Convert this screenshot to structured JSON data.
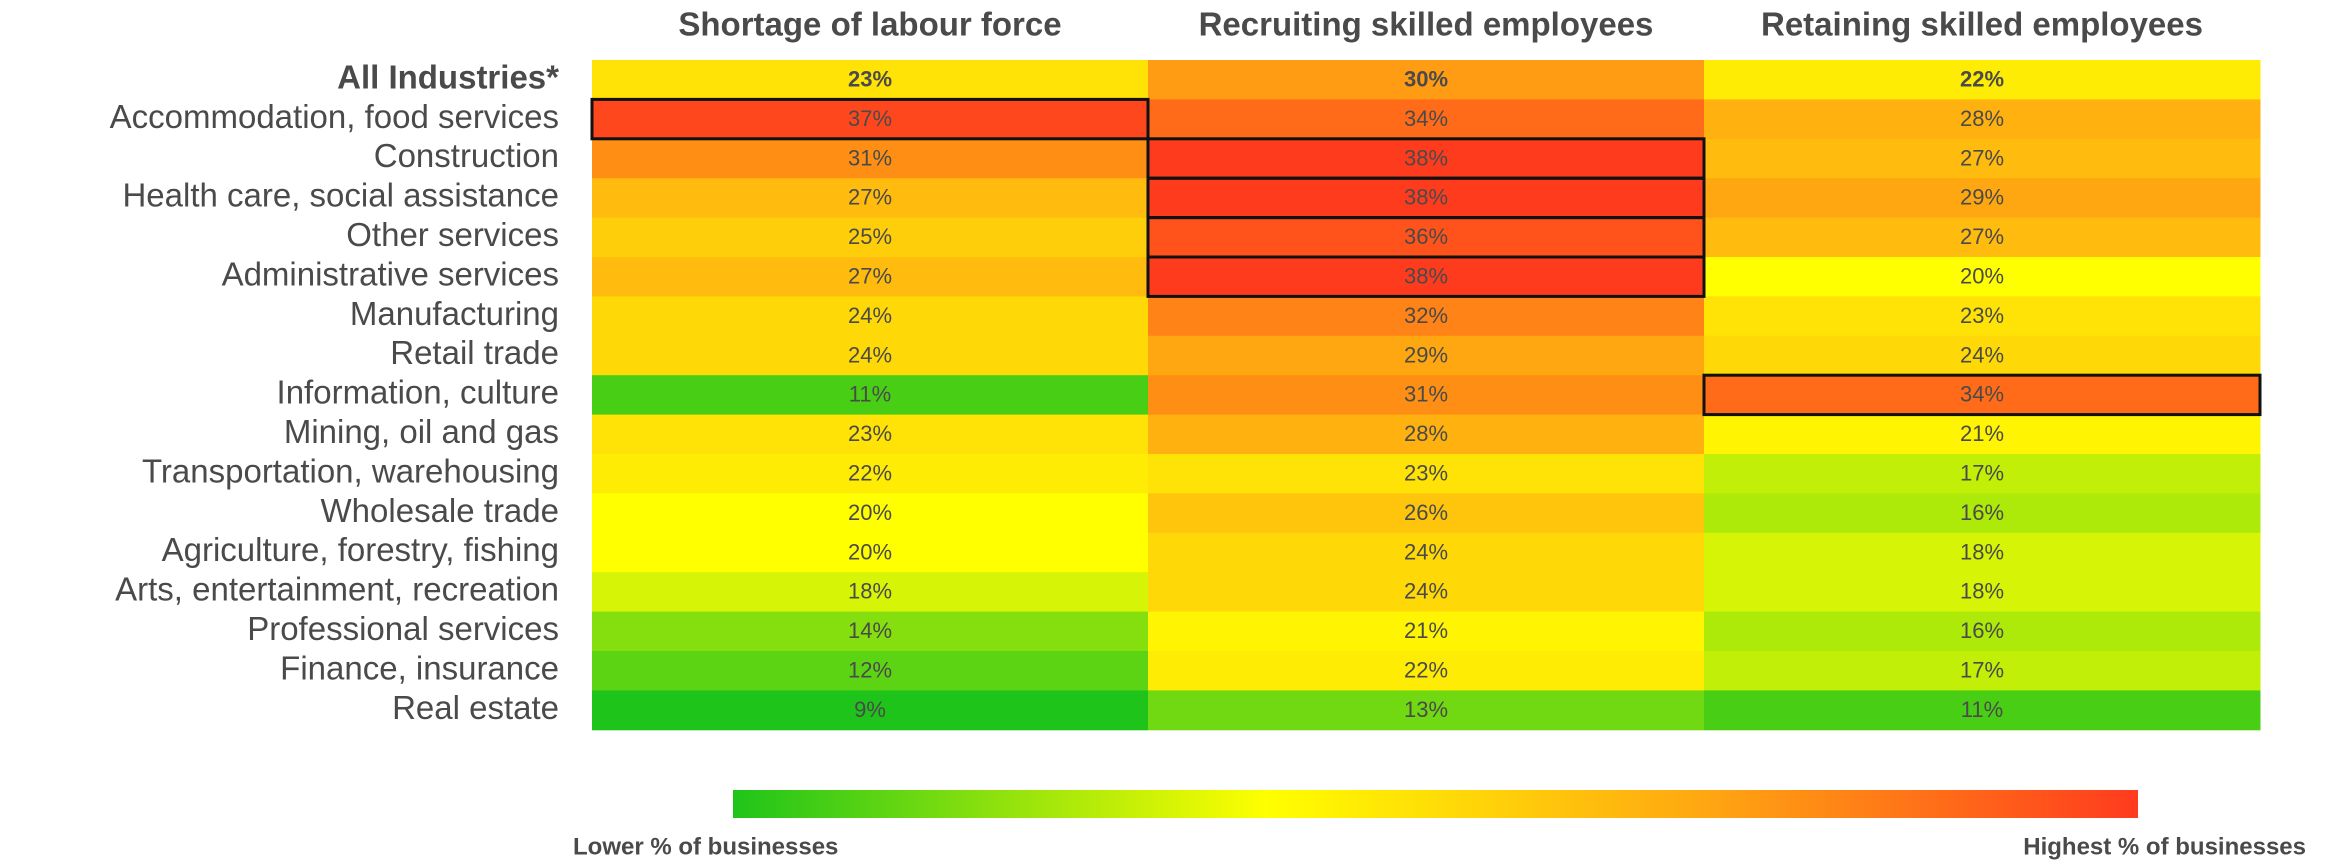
{
  "chart_data": {
    "type": "heatmap",
    "columns": [
      "Shortage of labour force",
      "Recruiting skilled employees",
      "Retaining skilled employees"
    ],
    "rows": [
      "All Industries*",
      "Accommodation, food services",
      "Construction",
      "Health care, social assistance",
      "Other services",
      "Administrative services",
      "Manufacturing",
      "Retail trade",
      "Information, culture",
      "Mining, oil and gas",
      "Transportation, warehousing",
      "Wholesale trade",
      "Agriculture, forestry, fishing",
      "Arts, entertainment, recreation",
      "Professional services",
      "Finance, insurance",
      "Real estate"
    ],
    "values": [
      [
        23,
        30,
        22
      ],
      [
        37,
        34,
        28
      ],
      [
        31,
        38,
        27
      ],
      [
        27,
        38,
        29
      ],
      [
        25,
        36,
        27
      ],
      [
        27,
        38,
        20
      ],
      [
        24,
        32,
        23
      ],
      [
        24,
        29,
        24
      ],
      [
        11,
        31,
        34
      ],
      [
        23,
        28,
        21
      ],
      [
        22,
        23,
        17
      ],
      [
        20,
        26,
        16
      ],
      [
        20,
        24,
        18
      ],
      [
        18,
        24,
        18
      ],
      [
        14,
        21,
        16
      ],
      [
        12,
        22,
        17
      ],
      [
        9,
        13,
        11
      ]
    ],
    "value_labels": [
      [
        "23%",
        "30%",
        "22%"
      ],
      [
        "37%",
        "34%",
        "28%"
      ],
      [
        "31%",
        "38%",
        "27%"
      ],
      [
        "27%",
        "38%",
        "29%"
      ],
      [
        "25%",
        "36%",
        "27%"
      ],
      [
        "27%",
        "38%",
        "20%"
      ],
      [
        "24%",
        "32%",
        "23%"
      ],
      [
        "24%",
        "29%",
        "24%"
      ],
      [
        "11%",
        "31%",
        "34%"
      ],
      [
        "23%",
        "28%",
        "21%"
      ],
      [
        "22%",
        "23%",
        "17%"
      ],
      [
        "20%",
        "26%",
        "16%"
      ],
      [
        "20%",
        "24%",
        "18%"
      ],
      [
        "18%",
        "24%",
        "18%"
      ],
      [
        "14%",
        "21%",
        "16%"
      ],
      [
        "12%",
        "22%",
        "17%"
      ],
      [
        "9%",
        "13%",
        "11%"
      ]
    ],
    "bold_rows": [
      0
    ],
    "highlight_cells": [
      [
        1,
        0
      ],
      [
        2,
        1
      ],
      [
        3,
        1
      ],
      [
        4,
        1
      ],
      [
        5,
        1
      ],
      [
        8,
        2
      ]
    ],
    "color_stops": [
      {
        "at": 0,
        "color": "#1fc41a"
      },
      {
        "at": 0.38,
        "color": "#ffff00"
      },
      {
        "at": 0.7,
        "color": "#ffa412"
      },
      {
        "at": 1,
        "color": "#ff3b1e"
      }
    ],
    "legend": {
      "low_label": "Lower % of businesses",
      "high_label": "Highest % of businesses"
    }
  }
}
